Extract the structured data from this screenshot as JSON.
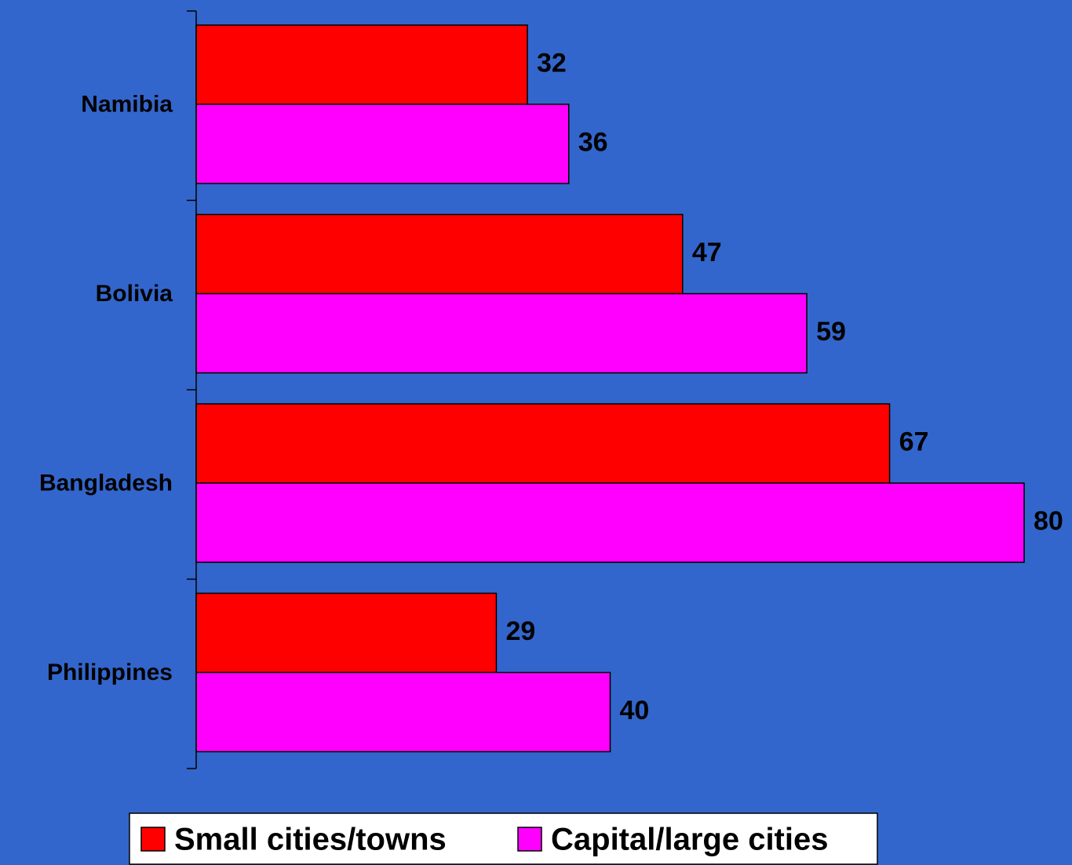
{
  "chart_data": {
    "type": "hbar",
    "categories": [
      "Namibia",
      "Bolivia",
      "Bangladesh",
      "Philippines"
    ],
    "series": [
      {
        "name": "Small cities/towns",
        "color": "#ff0000",
        "values": [
          32,
          47,
          67,
          29
        ]
      },
      {
        "name": "Capital/large cities",
        "color": "#ff00ff",
        "values": [
          36,
          59,
          80,
          40
        ]
      }
    ],
    "legend": "bottom"
  }
}
